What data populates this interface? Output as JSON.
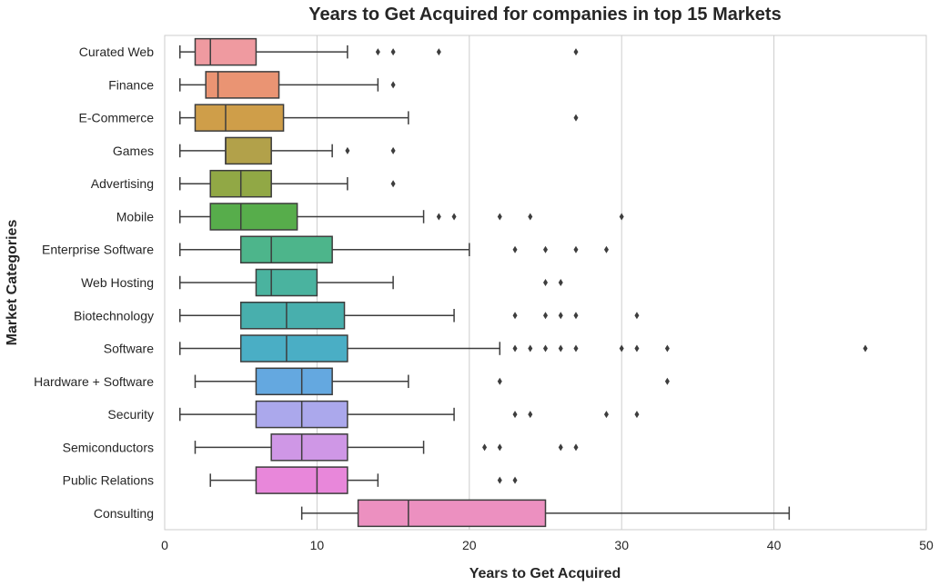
{
  "chart_data": {
    "type": "boxplot",
    "orientation": "horizontal",
    "title": "Years to Get Acquired for companies in top 15 Markets",
    "xlabel": "Years to Get Acquired",
    "ylabel": "Market Categories",
    "xlim": [
      0,
      50
    ],
    "xticks": [
      "0",
      "10",
      "20",
      "30",
      "40",
      "50"
    ],
    "grid": "vertical",
    "categories": [
      {
        "name": "Curated Web",
        "whisker_low": 1,
        "q1": 2,
        "median": 3,
        "q3": 6,
        "whisker_high": 12,
        "outliers": [
          14,
          15,
          18,
          27
        ],
        "color": "#ef9aa0"
      },
      {
        "name": "Finance",
        "whisker_low": 1,
        "q1": 2.7,
        "median": 3.5,
        "q3": 7.5,
        "whisker_high": 14,
        "outliers": [
          15
        ],
        "color": "#ea9473"
      },
      {
        "name": "E-Commerce",
        "whisker_low": 1,
        "q1": 2,
        "median": 4,
        "q3": 7.8,
        "whisker_high": 16,
        "outliers": [
          27
        ],
        "color": "#cf9e49"
      },
      {
        "name": "Games",
        "whisker_low": 1,
        "q1": 4,
        "median": 4,
        "q3": 7,
        "whisker_high": 11,
        "outliers": [
          12,
          15
        ],
        "color": "#b2a14a"
      },
      {
        "name": "Advertising",
        "whisker_low": 1,
        "q1": 3,
        "median": 5,
        "q3": 7,
        "whisker_high": 12,
        "outliers": [
          15
        ],
        "color": "#91a845"
      },
      {
        "name": "Mobile",
        "whisker_low": 1,
        "q1": 3,
        "median": 5,
        "q3": 8.7,
        "whisker_high": 17,
        "outliers": [
          18,
          19,
          22,
          24,
          30
        ],
        "color": "#57ad4b"
      },
      {
        "name": "Enterprise Software",
        "whisker_low": 1,
        "q1": 5,
        "median": 7,
        "q3": 11,
        "whisker_high": 20,
        "outliers": [
          23,
          25,
          27,
          29
        ],
        "color": "#4db58b"
      },
      {
        "name": "Web Hosting",
        "whisker_low": 1,
        "q1": 6,
        "median": 7,
        "q3": 10,
        "whisker_high": 15,
        "outliers": [
          25,
          26
        ],
        "color": "#4ab39f"
      },
      {
        "name": "Biotechnology",
        "whisker_low": 1,
        "q1": 5,
        "median": 8,
        "q3": 11.8,
        "whisker_high": 19,
        "outliers": [
          23,
          25,
          26,
          27,
          31
        ],
        "color": "#48afad"
      },
      {
        "name": "Software",
        "whisker_low": 1,
        "q1": 5,
        "median": 8,
        "q3": 12,
        "whisker_high": 22,
        "outliers": [
          23,
          24,
          25,
          26,
          27,
          30,
          31,
          33,
          46
        ],
        "color": "#4aaec5"
      },
      {
        "name": "Hardware + Software",
        "whisker_low": 2,
        "q1": 6,
        "median": 9,
        "q3": 11,
        "whisker_high": 16,
        "outliers": [
          22,
          33
        ],
        "color": "#64a8e0"
      },
      {
        "name": "Security",
        "whisker_low": 1,
        "q1": 6,
        "median": 9,
        "q3": 12,
        "whisker_high": 19,
        "outliers": [
          23,
          24,
          29,
          31
        ],
        "color": "#aba8ec"
      },
      {
        "name": "Semiconductors",
        "whisker_low": 2,
        "q1": 7,
        "median": 9,
        "q3": 12,
        "whisker_high": 17,
        "outliers": [
          21,
          22,
          26,
          27
        ],
        "color": "#cf97e6"
      },
      {
        "name": "Public Relations",
        "whisker_low": 3,
        "q1": 6,
        "median": 10,
        "q3": 12,
        "whisker_high": 14,
        "outliers": [
          22,
          23
        ],
        "color": "#e887da"
      },
      {
        "name": "Consulting",
        "whisker_low": 9,
        "q1": 12.7,
        "median": 16,
        "q3": 25,
        "whisker_high": 41,
        "outliers": [],
        "color": "#ec90c0"
      }
    ]
  }
}
